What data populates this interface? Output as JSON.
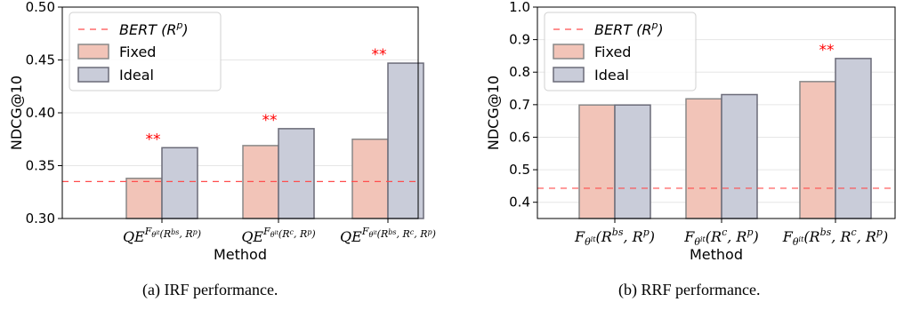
{
  "colors": {
    "fixed_fill": "#f2c4b8",
    "fixed_edge": "#888888",
    "ideal_fill": "#c9ccd9",
    "ideal_edge": "#6b6b78",
    "baseline": "#ff4d4d",
    "star": "#ff0000",
    "grid": "#e6e6e6"
  },
  "chart_data": [
    {
      "type": "bar",
      "caption": "(a) IRF performance.",
      "xlabel": "Method",
      "ylabel": "NDCG@10",
      "ylim": [
        0.3,
        0.5
      ],
      "yticks": [
        "0.30",
        "0.35",
        "0.40",
        "0.45",
        "0.50"
      ],
      "ytick_values": [
        0.3,
        0.35,
        0.4,
        0.45,
        0.5
      ],
      "grid": true,
      "legend_placement": "top-left",
      "categories": [
        {
          "base": "QE",
          "sup_main": "F",
          "sup_sub": "θ",
          "sup_subsup": "it",
          "args": "(R",
          "args_sup": "bs",
          "args_rest": ", R",
          "args_sup2": "p",
          "args_end": ")"
        },
        {
          "base": "QE",
          "sup_main": "F",
          "sup_sub": "θ",
          "sup_subsup": "it",
          "args": "(R",
          "args_sup": "c",
          "args_rest": ", R",
          "args_sup2": "p",
          "args_end": ")"
        },
        {
          "base": "QE",
          "sup_main": "F",
          "sup_sub": "θ",
          "sup_subsup": "it",
          "args": "(R",
          "args_sup": "bs",
          "args_rest": ", R",
          "args_sup2": "c",
          "args_end": ", R",
          "args_sup3": "p",
          "args_close": ")"
        }
      ],
      "series": [
        {
          "name": "Fixed",
          "values": [
            0.338,
            0.369,
            0.375
          ]
        },
        {
          "name": "Ideal",
          "values": [
            0.367,
            0.385,
            0.447
          ]
        }
      ],
      "baseline": {
        "label_main": "BERT",
        "label_arg": "(R",
        "label_sup": "p",
        "label_end": ")",
        "value": 0.335
      },
      "significance": [
        {
          "index": 0,
          "label": "**"
        },
        {
          "index": 1,
          "label": "**"
        },
        {
          "index": 2,
          "label": "**"
        }
      ]
    },
    {
      "type": "bar",
      "caption": "(b) RRF performance.",
      "xlabel": "Method",
      "ylabel": "NDCG@10",
      "ylim": [
        0.35,
        1.0
      ],
      "yticks": [
        "0.4",
        "0.5",
        "0.6",
        "0.7",
        "0.8",
        "0.9",
        "1.0"
      ],
      "ytick_values": [
        0.4,
        0.5,
        0.6,
        0.7,
        0.8,
        0.9,
        1.0
      ],
      "grid": true,
      "legend_placement": "top-left",
      "categories": [
        {
          "base": "F",
          "sub": "θ",
          "subsup": "it",
          "args": "(R",
          "args_sup": "bs",
          "args_rest": ", R",
          "args_sup2": "p",
          "args_end": ")"
        },
        {
          "base": "F",
          "sub": "θ",
          "subsup": "it",
          "args": "(R",
          "args_sup": "c",
          "args_rest": ", R",
          "args_sup2": "p",
          "args_end": ")"
        },
        {
          "base": "F",
          "sub": "θ",
          "subsup": "it",
          "args": "(R",
          "args_sup": "bs",
          "args_rest": ", R",
          "args_sup2": "c",
          "args_end": ", R",
          "args_sup3": "p",
          "args_close": ")"
        }
      ],
      "series": [
        {
          "name": "Fixed",
          "values": [
            0.699,
            0.718,
            0.771
          ]
        },
        {
          "name": "Ideal",
          "values": [
            0.699,
            0.731,
            0.842
          ]
        }
      ],
      "baseline": {
        "label_main": "BERT",
        "label_arg": "(R",
        "label_sup": "p",
        "label_end": ")",
        "value": 0.443
      },
      "significance": [
        {
          "index": 2,
          "label": "**"
        }
      ]
    }
  ]
}
